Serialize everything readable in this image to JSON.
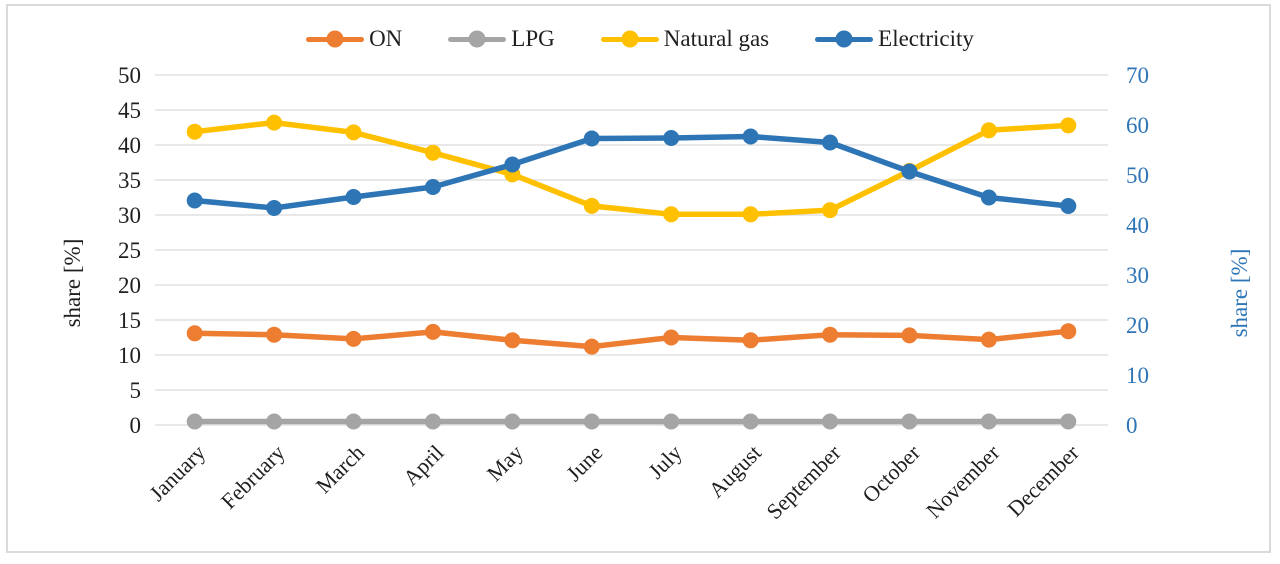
{
  "figure": {
    "background": "#FFFFFF",
    "border_color": "#DADADA"
  },
  "chart_data": {
    "type": "line",
    "title": "",
    "categories": [
      "January",
      "February",
      "March",
      "April",
      "May",
      "June",
      "July",
      "August",
      "September",
      "October",
      "November",
      "December"
    ],
    "series": [
      {
        "name": "ON",
        "color": "#ED7D31",
        "axis": "left",
        "values": [
          13.1,
          12.9,
          12.3,
          13.3,
          12.1,
          11.2,
          12.5,
          12.1,
          12.9,
          12.8,
          12.2,
          13.4
        ]
      },
      {
        "name": "LPG",
        "color": "#A5A5A5",
        "axis": "left",
        "values": [
          0.5,
          0.5,
          0.5,
          0.5,
          0.5,
          0.5,
          0.5,
          0.5,
          0.5,
          0.5,
          0.5,
          0.5
        ]
      },
      {
        "name": "Natural gas",
        "color": "#FFC000",
        "axis": "left",
        "values": [
          41.9,
          43.2,
          41.8,
          38.9,
          35.8,
          31.3,
          30.1,
          30.1,
          30.7,
          36.3,
          42.1,
          42.8
        ]
      },
      {
        "name": "Electricity",
        "color": "#2E75B6",
        "axis": "right",
        "values": [
          44.9,
          43.4,
          45.6,
          47.6,
          52.1,
          57.3,
          57.4,
          57.7,
          56.5,
          50.7,
          45.5,
          43.8
        ]
      }
    ],
    "left_axis": {
      "label": "share [%]",
      "min": 0,
      "max": 50,
      "step": 5,
      "color": "#1f1f1f"
    },
    "right_axis": {
      "label": "share [%]",
      "min": 0,
      "max": 70,
      "step": 10,
      "color": "#2E75B6"
    },
    "grid": true,
    "gridline_color": "#D9D9D9",
    "legend_position": "top",
    "marker": "circle"
  }
}
